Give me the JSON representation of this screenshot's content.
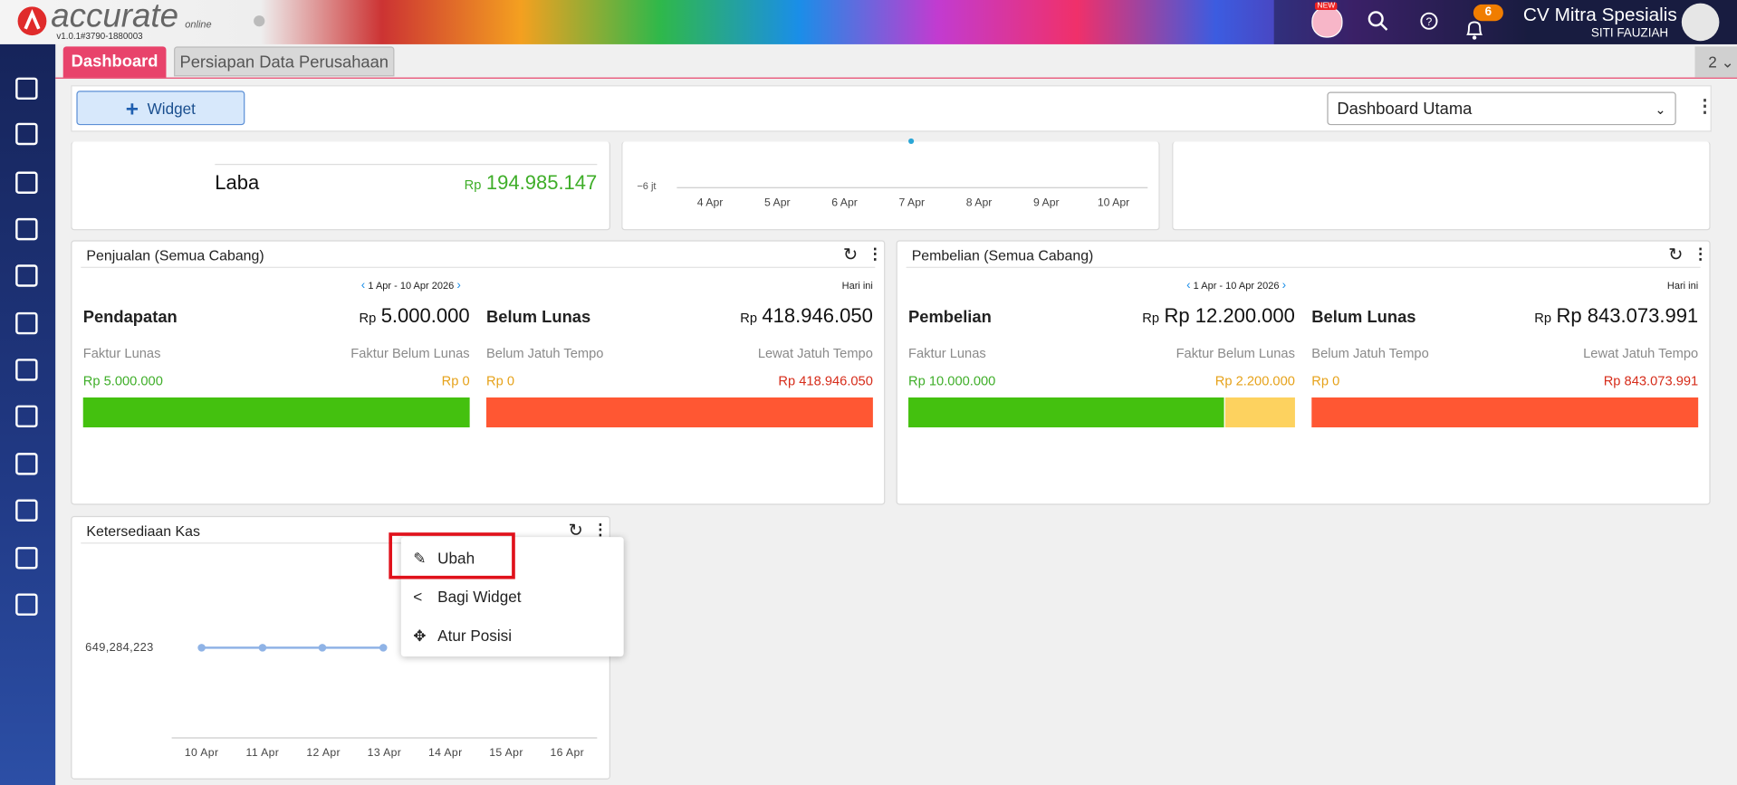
{
  "header": {
    "logo": "accurate",
    "logo_sub": "online",
    "version": "v1.0.1#3790-1880003",
    "new_badge": "NEW",
    "notification_count": "6",
    "company": "CV Mitra Spesialis",
    "user": "SITI FAUZIAH"
  },
  "tabs": [
    "Dashboard",
    "Persiapan Data Perusahaan"
  ],
  "tab_count": "2",
  "toolbar": {
    "add_widget": "Widget",
    "dashboard_select": "Dashboard Utama"
  },
  "laba_widget": {
    "label": "Laba",
    "currency": "Rp",
    "value": "194.985.147"
  },
  "chart_widget": {
    "y_label": "−6 jt",
    "x_labels": [
      "4 Apr",
      "5 Apr",
      "6 Apr",
      "7 Apr",
      "8 Apr",
      "9 Apr",
      "10 Apr"
    ]
  },
  "penjualan": {
    "title": "Penjualan (Semua Cabang)",
    "period": "1 Apr - 10 Apr 2026",
    "today": "Hari ini",
    "left": {
      "label": "Pendapatan",
      "currency": "Rp",
      "value": "5.000.000",
      "sub_left": "Faktur Lunas",
      "sub_right": "Faktur Belum Lunas",
      "amount_left": "Rp 5.000.000",
      "amount_right": "Rp 0"
    },
    "right": {
      "label": "Belum Lunas",
      "currency": "Rp",
      "value": "418.946.050",
      "sub_left": "Belum Jatuh Tempo",
      "sub_right": "Lewat Jatuh Tempo",
      "amount_left": "Rp 0",
      "amount_right": "Rp 418.946.050"
    }
  },
  "pembelian": {
    "title": "Pembelian (Semua Cabang)",
    "period": "1 Apr - 10 Apr 2026",
    "today": "Hari ini",
    "left": {
      "label": "Pembelian",
      "currency": "Rp",
      "value": "Rp 12.200.000",
      "sub_left": "Faktur Lunas",
      "sub_right": "Faktur Belum Lunas",
      "amount_left": "Rp 10.000.000",
      "amount_right": "Rp 2.200.000"
    },
    "right": {
      "label": "Belum Lunas",
      "currency": "Rp",
      "value": "Rp 843.073.991",
      "sub_left": "Belum Jatuh Tempo",
      "sub_right": "Lewat Jatuh Tempo",
      "amount_left": "Rp 0",
      "amount_right": "Rp 843.073.991"
    }
  },
  "kas": {
    "title": "Ketersediaan Kas",
    "y_label": "649,284,223",
    "x_labels": [
      "10 Apr",
      "11 Apr",
      "12 Apr",
      "13 Apr",
      "14 Apr",
      "15 Apr",
      "16 Apr"
    ]
  },
  "context_menu": [
    "Ubah",
    "Bagi Widget",
    "Atur Posisi"
  ]
}
